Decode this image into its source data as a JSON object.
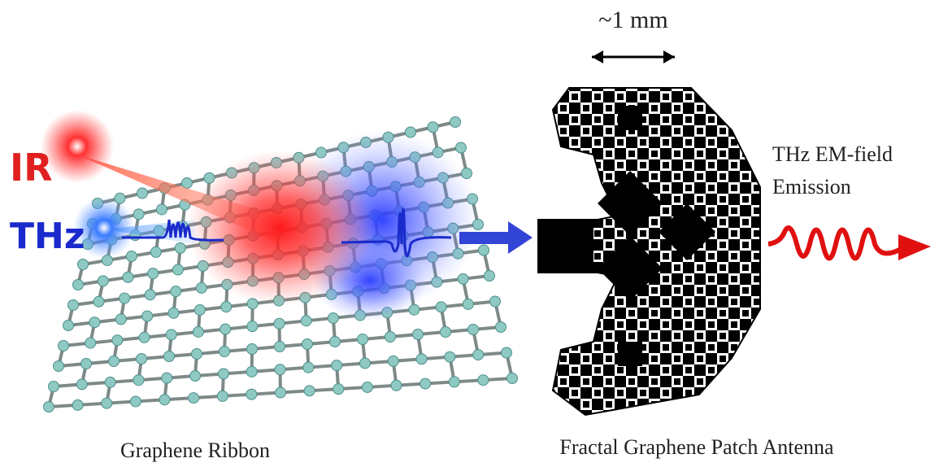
{
  "labels": {
    "ir": "IR",
    "thz": "THz",
    "scale": "~1 mm",
    "emission_line1": "THz EM-field",
    "emission_line2": "Emission"
  },
  "captions": {
    "ribbon": "Graphene Ribbon",
    "antenna": "Fractal Graphene Patch Antenna"
  }
}
